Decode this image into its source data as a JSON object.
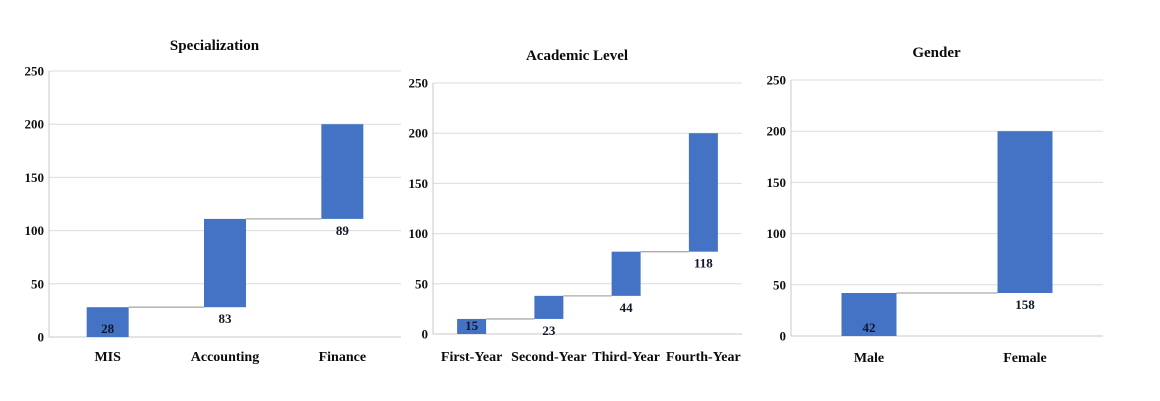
{
  "figure": {
    "background": "#FFFFFF",
    "description": "Three waterfall-style cumulative bar charts showing sample distribution"
  },
  "style": {
    "bar_color": "#4472C4",
    "gridline_color": "#DCDCDC",
    "axis_line_color": "#C8C8C8",
    "connector_color": "#ABABAB",
    "data_label_color": "#101828",
    "axis_text_color": "#111111"
  },
  "chart_data": [
    {
      "type": "bar",
      "subtype": "waterfall",
      "title": "Specialization",
      "categories": [
        "MIS",
        "Accounting",
        "Finance"
      ],
      "values": [
        28,
        83,
        89
      ],
      "cumulative_tops": [
        28,
        111,
        200
      ],
      "label_positions": [
        "inside-base",
        "below-base",
        "below-base"
      ],
      "yticks": [
        0,
        50,
        100,
        150,
        200,
        250
      ],
      "ylim": [
        0,
        250
      ],
      "xlabel": "",
      "ylabel": "",
      "grid": "horizontal",
      "legend": "none"
    },
    {
      "type": "bar",
      "subtype": "waterfall",
      "title": "Academic Level",
      "categories": [
        "First-Year",
        "Second-Year",
        "Third-Year",
        "Fourth-Year"
      ],
      "values": [
        15,
        23,
        44,
        118
      ],
      "cumulative_tops": [
        15,
        38,
        82,
        200
      ],
      "label_positions": [
        "inside-base",
        "below-base",
        "below-base",
        "below-base"
      ],
      "yticks": [
        0,
        50,
        100,
        150,
        200,
        250
      ],
      "ylim": [
        0,
        250
      ],
      "xlabel": "",
      "ylabel": "",
      "grid": "horizontal",
      "legend": "none"
    },
    {
      "type": "bar",
      "subtype": "waterfall",
      "title": "Gender",
      "categories": [
        "Male",
        "Female"
      ],
      "values": [
        42,
        158
      ],
      "cumulative_tops": [
        42,
        200
      ],
      "label_positions": [
        "inside-base",
        "below-base"
      ],
      "yticks": [
        0,
        50,
        100,
        150,
        200,
        250
      ],
      "ylim": [
        0,
        250
      ],
      "xlabel": "",
      "ylabel": "",
      "grid": "horizontal",
      "legend": "none"
    }
  ]
}
